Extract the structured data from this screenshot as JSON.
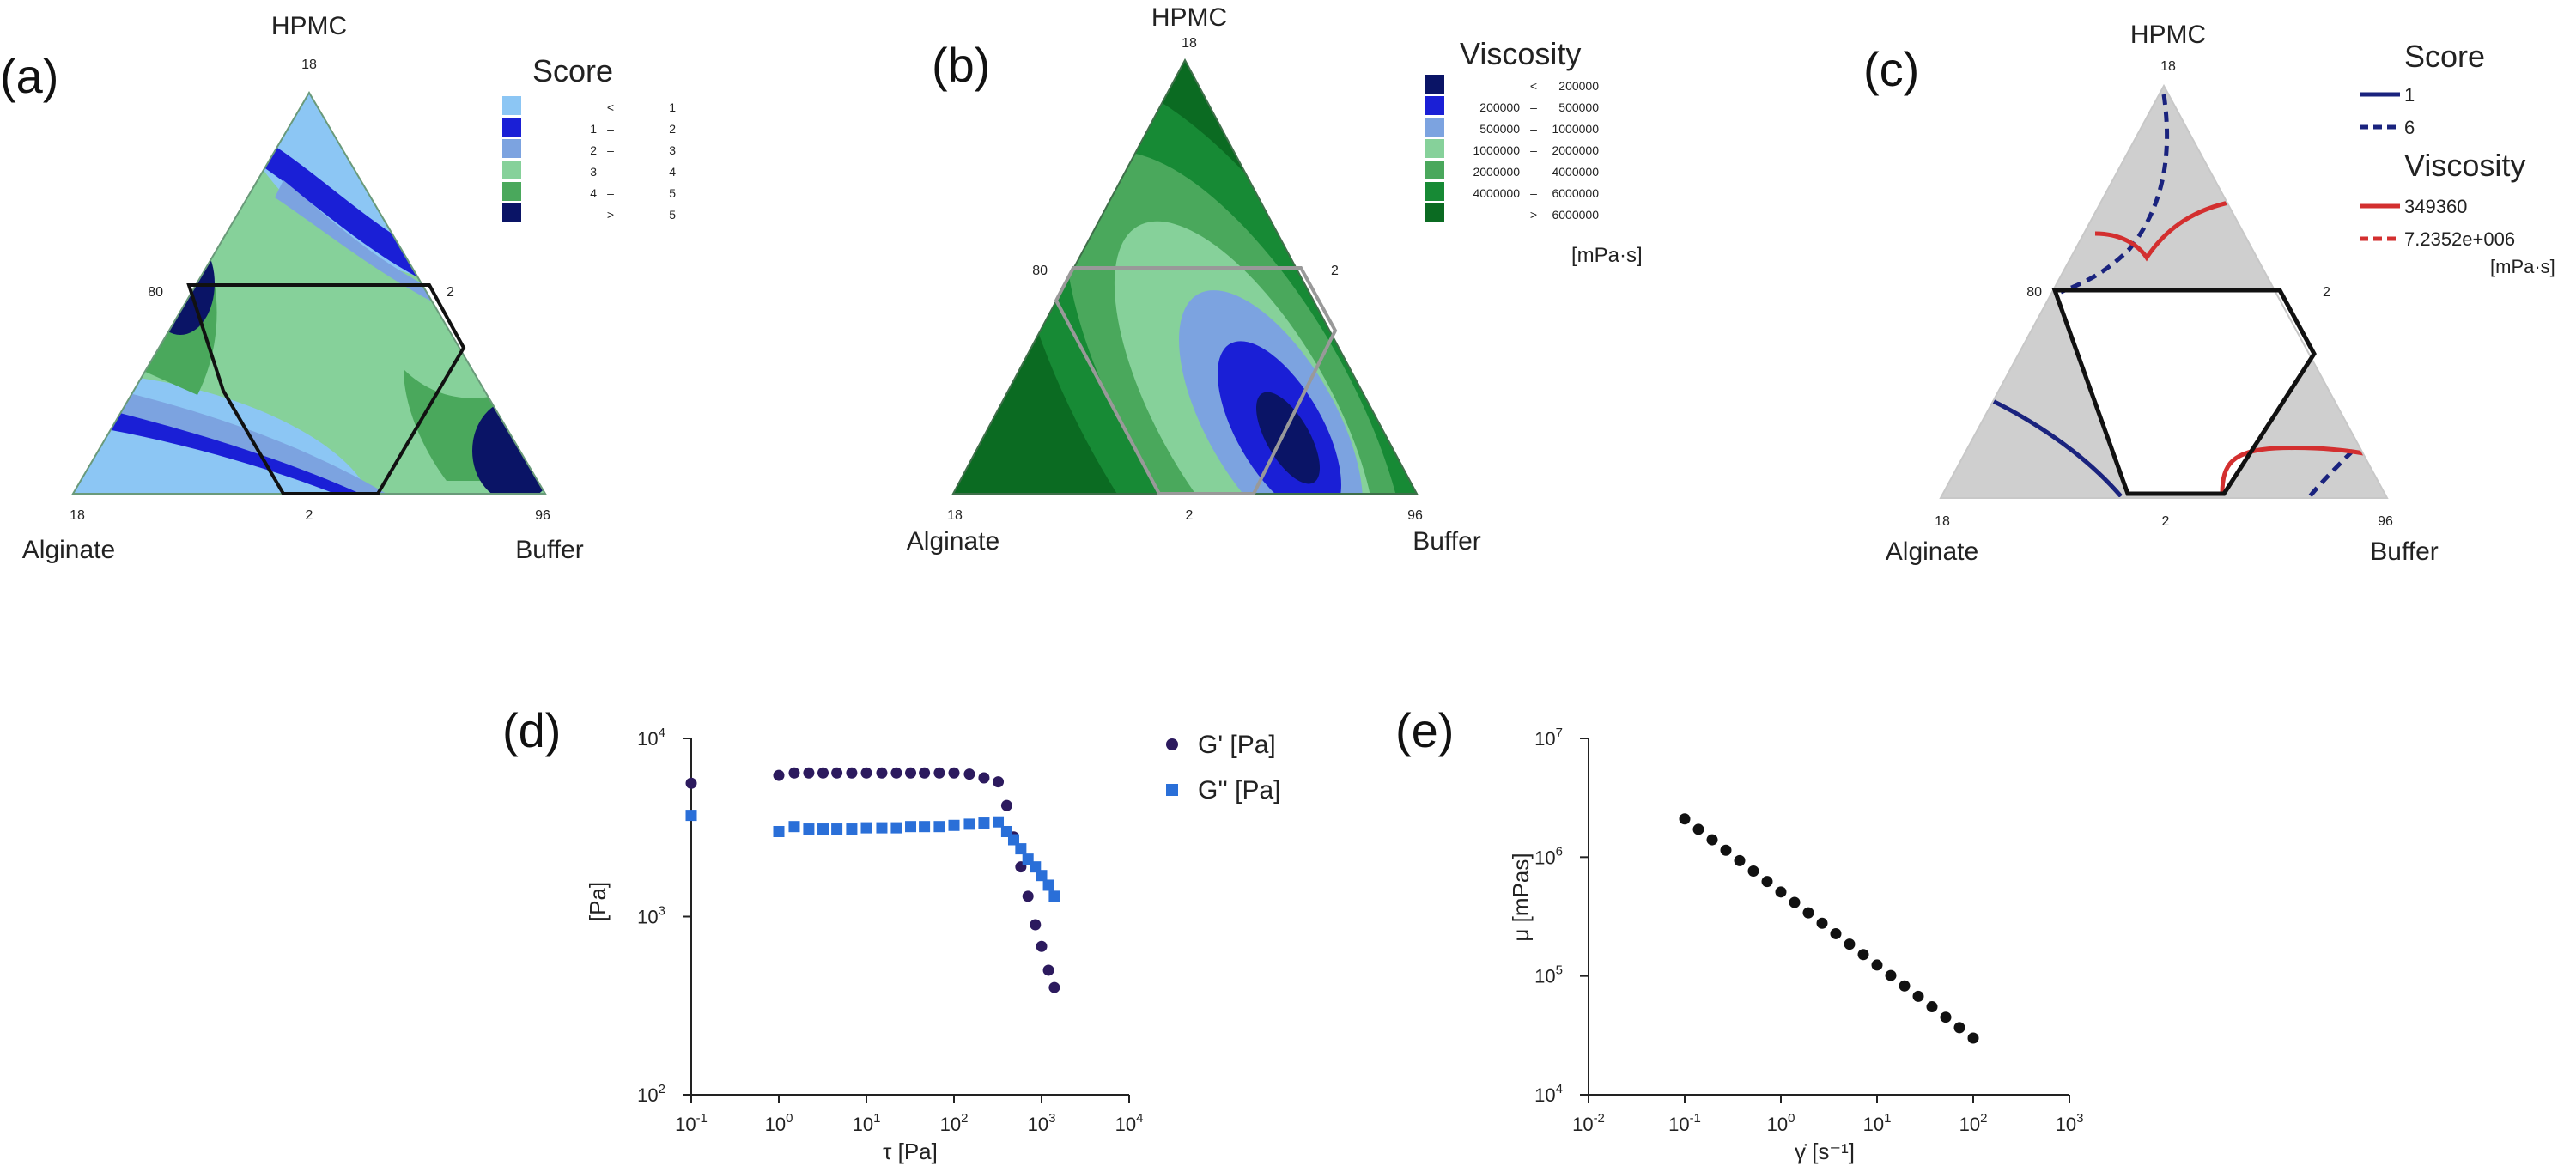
{
  "colors": {
    "score_lt1": "#8cc6f4",
    "score_1_2": "#1a1fd6",
    "score_2_3": "#7ca3e0",
    "score_3_4": "#86d19a",
    "score_4_5": "#4aa85c",
    "score_gt5": "#0a1466",
    "visc_1": "#0a1466",
    "visc_2": "#1a1fd6",
    "visc_3": "#7ca3e0",
    "visc_4": "#86d19a",
    "visc_5": "#4aa85c",
    "visc_6": "#178a35",
    "visc_7": "#0b6b22",
    "overlay_bg": "#cfcfcf",
    "score_line": "#1a237e",
    "visc_line": "#d32f2f",
    "g_prime": "#2c1a5e",
    "g_dprime": "#2a6fd8",
    "mu": "#111111"
  },
  "chart_data": [
    {
      "panel": "(a)",
      "type": "heatmap",
      "subtype": "ternary-contour",
      "vertices": {
        "top": "HPMC",
        "left": "Alginate",
        "right": "Buffer"
      },
      "vertex_values": {
        "top": "18",
        "left": "18",
        "right": "96"
      },
      "edge_ticks": {
        "left_mid": "80",
        "right_mid": "2",
        "bottom_mid": "2"
      },
      "legend_title": "Score",
      "legend": [
        {
          "lo": "",
          "op": "<",
          "hi": "1"
        },
        {
          "lo": "1",
          "op": "–",
          "hi": "2"
        },
        {
          "lo": "2",
          "op": "–",
          "hi": "3"
        },
        {
          "lo": "3",
          "op": "–",
          "hi": "4"
        },
        {
          "lo": "4",
          "op": "–",
          "hi": "5"
        },
        {
          "lo": "",
          "op": ">",
          "hi": "5"
        }
      ]
    },
    {
      "panel": "(b)",
      "type": "heatmap",
      "subtype": "ternary-contour",
      "vertices": {
        "top": "HPMC",
        "left": "Alginate",
        "right": "Buffer"
      },
      "vertex_values": {
        "top": "18",
        "left": "18",
        "right": "96"
      },
      "edge_ticks": {
        "left_mid": "80",
        "right_mid": "2",
        "bottom_mid": "2"
      },
      "legend_title": "Viscosity",
      "legend_unit": "[mPa·s]",
      "legend": [
        {
          "lo": "",
          "op": "<",
          "hi": "200000"
        },
        {
          "lo": "200000",
          "op": "–",
          "hi": "500000"
        },
        {
          "lo": "500000",
          "op": "–",
          "hi": "1000000"
        },
        {
          "lo": "1000000",
          "op": "–",
          "hi": "2000000"
        },
        {
          "lo": "2000000",
          "op": "–",
          "hi": "4000000"
        },
        {
          "lo": "4000000",
          "op": "–",
          "hi": "6000000"
        },
        {
          "lo": "",
          "op": ">",
          "hi": "6000000"
        }
      ]
    },
    {
      "panel": "(c)",
      "type": "line",
      "subtype": "ternary-overlay",
      "vertices": {
        "top": "HPMC",
        "left": "Alginate",
        "right": "Buffer"
      },
      "vertex_values": {
        "top": "18",
        "left": "18",
        "right": "96"
      },
      "edge_ticks": {
        "left_mid": "80",
        "right_mid": "2",
        "bottom_mid": "2"
      },
      "legend": {
        "score_title": "Score",
        "score_solid": "1",
        "score_dashed": "6",
        "visc_title": "Viscosity",
        "visc_solid": "349360",
        "visc_dashed": "7.2352e+006",
        "visc_unit": "[mPa·s]"
      }
    },
    {
      "panel": "(d)",
      "type": "scatter",
      "xlabel": "τ [Pa]",
      "ylabel": "[Pa]",
      "xscale": "log",
      "yscale": "log",
      "xlim": [
        0.1,
        10000
      ],
      "ylim": [
        100,
        10000
      ],
      "xticks": [
        {
          "b": "10",
          "e": "-1"
        },
        {
          "b": "10",
          "e": "0"
        },
        {
          "b": "10",
          "e": "1"
        },
        {
          "b": "10",
          "e": "2"
        },
        {
          "b": "10",
          "e": "3"
        },
        {
          "b": "10",
          "e": "4"
        }
      ],
      "yticks": [
        {
          "b": "10",
          "e": "2"
        },
        {
          "b": "10",
          "e": "3"
        },
        {
          "b": "10",
          "e": "4"
        }
      ],
      "legend_placement": "top-right",
      "series": [
        {
          "name": "G' [Pa]",
          "marker": "circle",
          "points": [
            [
              0.1,
              5600
            ],
            [
              1,
              6200
            ],
            [
              1.5,
              6400
            ],
            [
              2.2,
              6400
            ],
            [
              3.2,
              6400
            ],
            [
              4.6,
              6400
            ],
            [
              6.8,
              6400
            ],
            [
              10,
              6400
            ],
            [
              15,
              6400
            ],
            [
              22,
              6400
            ],
            [
              32,
              6400
            ],
            [
              46,
              6400
            ],
            [
              68,
              6400
            ],
            [
              100,
              6400
            ],
            [
              150,
              6300
            ],
            [
              220,
              6000
            ],
            [
              320,
              5700
            ],
            [
              400,
              4200
            ],
            [
              480,
              2800
            ],
            [
              580,
              1900
            ],
            [
              700,
              1300
            ],
            [
              850,
              900
            ],
            [
              1000,
              680
            ],
            [
              1200,
              500
            ],
            [
              1400,
              400
            ]
          ]
        },
        {
          "name": "G'' [Pa]",
          "marker": "square",
          "points": [
            [
              0.1,
              3700
            ],
            [
              1,
              3000
            ],
            [
              1.5,
              3200
            ],
            [
              2.2,
              3100
            ],
            [
              3.2,
              3100
            ],
            [
              4.6,
              3100
            ],
            [
              6.8,
              3100
            ],
            [
              10,
              3150
            ],
            [
              15,
              3150
            ],
            [
              22,
              3150
            ],
            [
              32,
              3200
            ],
            [
              46,
              3200
            ],
            [
              68,
              3200
            ],
            [
              100,
              3250
            ],
            [
              150,
              3300
            ],
            [
              220,
              3350
            ],
            [
              320,
              3400
            ],
            [
              400,
              3000
            ],
            [
              480,
              2700
            ],
            [
              580,
              2400
            ],
            [
              700,
              2100
            ],
            [
              850,
              1900
            ],
            [
              1000,
              1700
            ],
            [
              1200,
              1500
            ],
            [
              1400,
              1300
            ]
          ]
        }
      ]
    },
    {
      "panel": "(e)",
      "type": "scatter",
      "xlabel": "γ̇ [s⁻¹]",
      "ylabel": "μ [mPas]",
      "xscale": "log",
      "yscale": "log",
      "xlim": [
        0.01,
        1000
      ],
      "ylim": [
        10000,
        10000000
      ],
      "xticks": [
        {
          "b": "10",
          "e": "-2"
        },
        {
          "b": "10",
          "e": "-1"
        },
        {
          "b": "10",
          "e": "0"
        },
        {
          "b": "10",
          "e": "1"
        },
        {
          "b": "10",
          "e": "2"
        },
        {
          "b": "10",
          "e": "3"
        }
      ],
      "yticks": [
        {
          "b": "10",
          "e": "4"
        },
        {
          "b": "10",
          "e": "5"
        },
        {
          "b": "10",
          "e": "6"
        },
        {
          "b": "10",
          "e": "7"
        }
      ],
      "series": [
        {
          "name": "",
          "marker": "circle",
          "x_range": [
            0.1,
            100
          ],
          "y_range": [
            2100000,
            30000
          ],
          "n_points": 22
        }
      ]
    }
  ]
}
